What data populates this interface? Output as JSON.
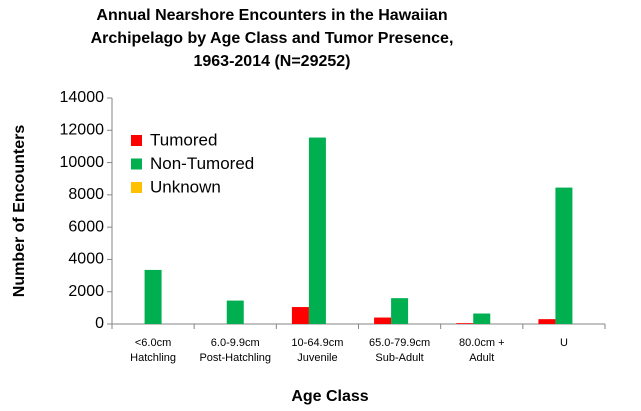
{
  "chart_data": {
    "type": "bar",
    "title": [
      "Annual Nearshore Encounters in the Hawaiian",
      "Archipelago by Age Class and Tumor Presence,",
      "1963-2014 (N=29252)"
    ],
    "x_label": "Age Class",
    "y_label": "Number of Encounters",
    "categories": [
      [
        "<6.0cm",
        "Hatchling"
      ],
      [
        "6.0-9.9cm",
        "Post-Hatchling"
      ],
      [
        "10-64.9cm",
        "Juvenile"
      ],
      [
        "65.0-79.9cm",
        "Sub-Adult"
      ],
      [
        "80.0cm +",
        "Adult"
      ],
      [
        "U"
      ]
    ],
    "series": [
      {
        "name": "Tumored",
        "color": "#ff0000",
        "values": [
          0,
          0,
          1050,
          400,
          50,
          300
        ]
      },
      {
        "name": "Non-Tumored",
        "color": "#00b050",
        "values": [
          3350,
          1450,
          11550,
          1600,
          650,
          8450
        ]
      },
      {
        "name": "Unknown",
        "color": "#ffc000",
        "values": [
          0,
          0,
          0,
          0,
          0,
          0
        ]
      }
    ],
    "ylim": [
      0,
      14000
    ],
    "yticks": [
      0,
      2000,
      4000,
      6000,
      8000,
      10000,
      12000,
      14000
    ],
    "grid": false,
    "legend": "upper left"
  }
}
